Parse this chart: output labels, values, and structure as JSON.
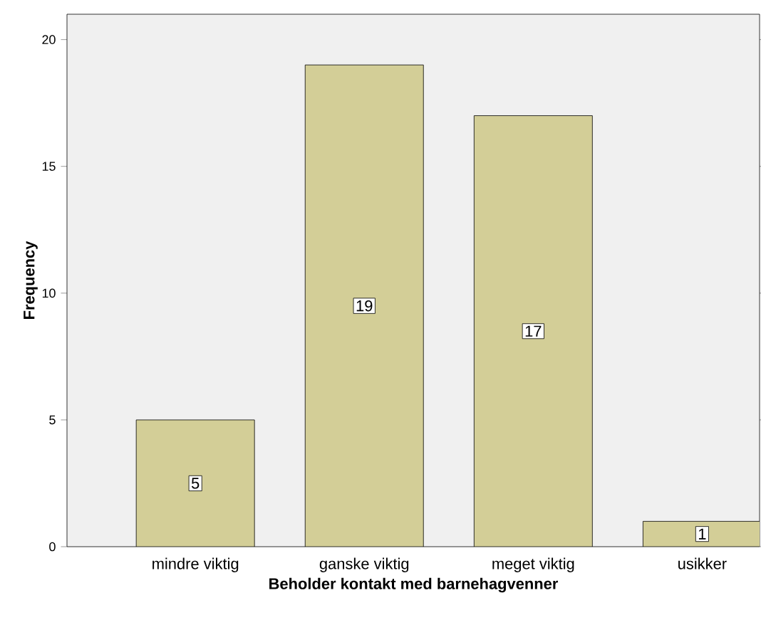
{
  "chart_data": {
    "type": "bar",
    "xlabel": "Beholder kontakt med barnehagvenner",
    "ylabel": "Frequency",
    "categories": [
      "mindre viktig",
      "ganske viktig",
      "meget viktig",
      "usikker"
    ],
    "values": [
      5,
      19,
      17,
      1
    ],
    "color": "#d3ce97",
    "ylim": [
      0,
      21
    ],
    "yticks": [
      0,
      5,
      10,
      15,
      20
    ],
    "grid": false,
    "data_labels": true
  }
}
